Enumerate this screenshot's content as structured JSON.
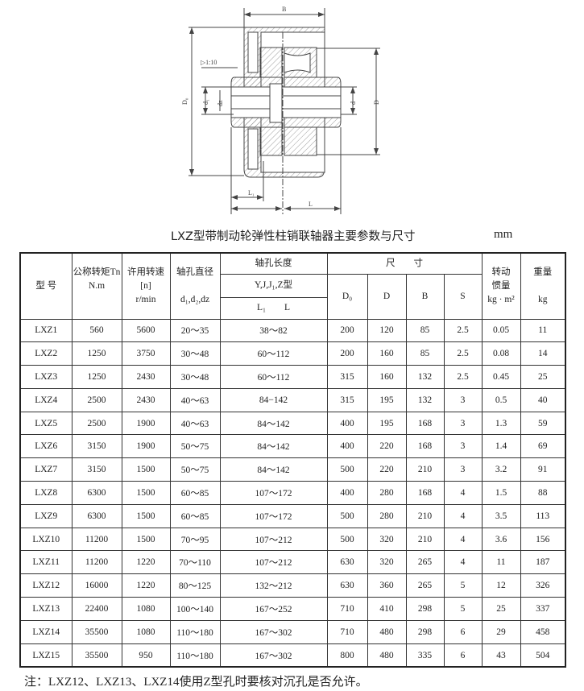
{
  "drawing": {
    "labels": {
      "B": "B",
      "taper": "▷1:10",
      "D0": "D₀",
      "d1": "d₁",
      "dz": "dz",
      "d": "d",
      "D": "D",
      "L1": "L₁",
      "L": "L"
    }
  },
  "title": "LXZ型带制动轮弹性柱销联轴器主要参数与尺寸",
  "unit": "mm",
  "table": {
    "headers": {
      "model": "型 号",
      "torque": "公称转矩Tn",
      "torque_unit": "N.m",
      "speed": "许用转速",
      "speed_sym": "[n]",
      "speed_unit": "r/min",
      "bore_dia": "轴孔直径",
      "bore_dia_sym": "d₁,d₂,dz",
      "bore_len": "轴孔长度",
      "bore_len_types": "Y,J,J₁,Z型",
      "bore_len_L1": "L₁",
      "bore_len_L": "L",
      "dims": "尺　　寸",
      "D0": "D₀",
      "D": "D",
      "B": "B",
      "S": "S",
      "inertia": "转动",
      "inertia2": "惯量",
      "inertia_unit": "kg · m²",
      "weight": "重量",
      "weight_unit": "kg"
    },
    "rows": [
      [
        "LXZ1",
        "560",
        "5600",
        "20～35",
        "38～82",
        "200",
        "120",
        "85",
        "2.5",
        "0.05",
        "11"
      ],
      [
        "LXZ2",
        "1250",
        "3750",
        "30～48",
        "60～112",
        "200",
        "160",
        "85",
        "2.5",
        "0.08",
        "14"
      ],
      [
        "LXZ3",
        "1250",
        "2430",
        "30～48",
        "60～112",
        "315",
        "160",
        "132",
        "2.5",
        "0.45",
        "25"
      ],
      [
        "LXZ4",
        "2500",
        "2430",
        "40～63",
        "84−142",
        "315",
        "195",
        "132",
        "3",
        "0.5",
        "40"
      ],
      [
        "LXZ5",
        "2500",
        "1900",
        "40～63",
        "84～142",
        "400",
        "195",
        "168",
        "3",
        "1.3",
        "59"
      ],
      [
        "LXZ6",
        "3150",
        "1900",
        "50～75",
        "84～142",
        "400",
        "220",
        "168",
        "3",
        "1.4",
        "69"
      ],
      [
        "LXZ7",
        "3150",
        "1500",
        "50～75",
        "84～142",
        "500",
        "220",
        "210",
        "3",
        "3.2",
        "91"
      ],
      [
        "LXZ8",
        "6300",
        "1500",
        "60～85",
        "107～172",
        "400",
        "280",
        "168",
        "4",
        "1.5",
        "88"
      ],
      [
        "LXZ9",
        "6300",
        "1500",
        "60～85",
        "107～172",
        "500",
        "280",
        "210",
        "4",
        "3.5",
        "113"
      ],
      [
        "LXZ10",
        "11200",
        "1500",
        "70～95",
        "107～212",
        "500",
        "320",
        "210",
        "4",
        "3.6",
        "156"
      ],
      [
        "LXZ11",
        "11200",
        "1220",
        "70～110",
        "107～212",
        "630",
        "320",
        "265",
        "4",
        "11",
        "187"
      ],
      [
        "LXZ12",
        "16000",
        "1220",
        "80～125",
        "132～212",
        "630",
        "360",
        "265",
        "5",
        "12",
        "326"
      ],
      [
        "LXZ13",
        "22400",
        "1080",
        "100～140",
        "167～252",
        "710",
        "410",
        "298",
        "5",
        "25",
        "337"
      ],
      [
        "LXZ14",
        "35500",
        "1080",
        "110～180",
        "167～302",
        "710",
        "480",
        "298",
        "6",
        "29",
        "458"
      ],
      [
        "LXZ15",
        "35500",
        "950",
        "110～180",
        "167～302",
        "800",
        "480",
        "335",
        "6",
        "43",
        "504"
      ]
    ]
  },
  "note": "注：LXZ12、LXZ13、LXZ14使用Z型孔时要核对沉孔是否允许。"
}
